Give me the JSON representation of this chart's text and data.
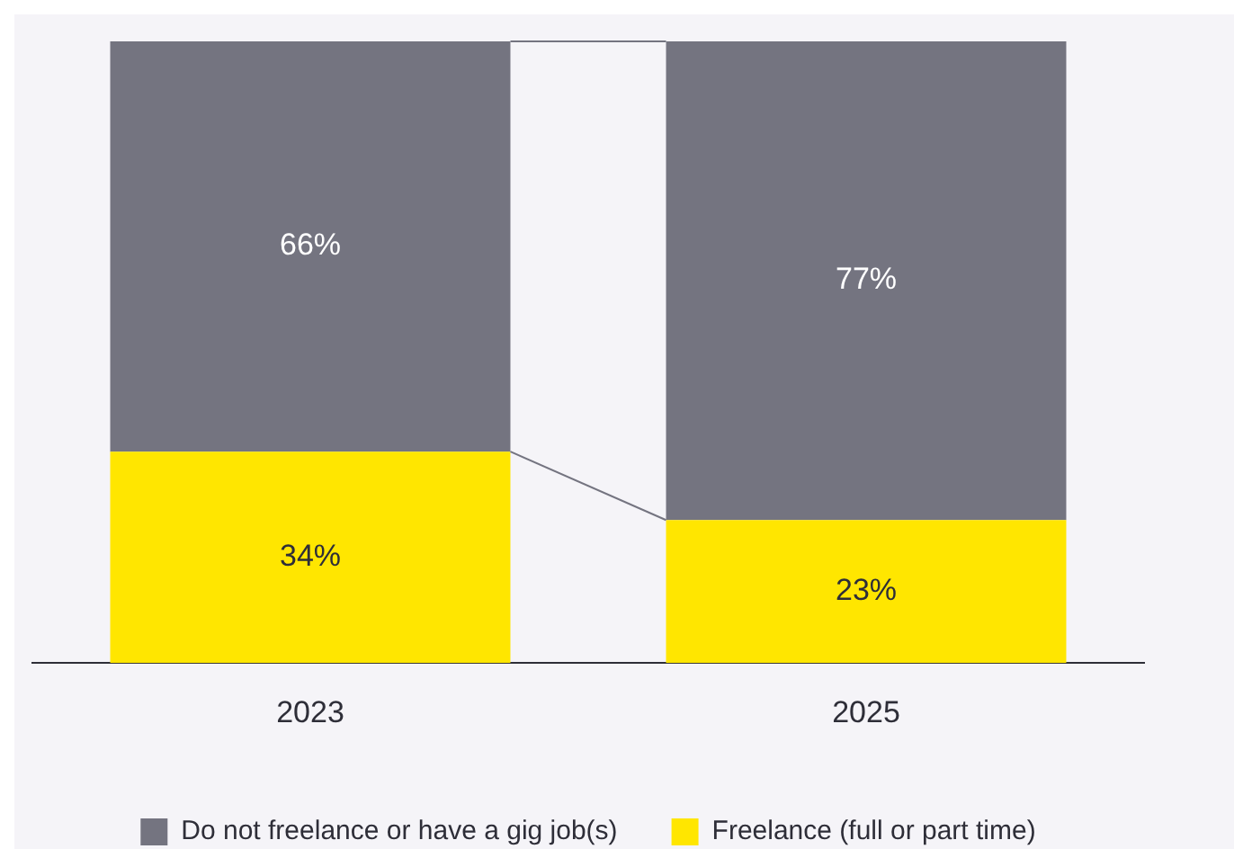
{
  "chart_data": {
    "type": "bar",
    "stacked": true,
    "categories": [
      "2023",
      "2025"
    ],
    "series": [
      {
        "name": "Freelance (full or part time)",
        "color": "#ffe600",
        "values": [
          34,
          23
        ],
        "value_labels": [
          "34%",
          "23%"
        ]
      },
      {
        "name": "Do not freelance or have a gig job(s)",
        "color": "#747480",
        "values": [
          66,
          77
        ],
        "value_labels": [
          "66%",
          "77%"
        ]
      }
    ],
    "ylim": [
      0,
      100
    ],
    "tick_labels": "x",
    "grid": false,
    "legend": "bottom"
  }
}
